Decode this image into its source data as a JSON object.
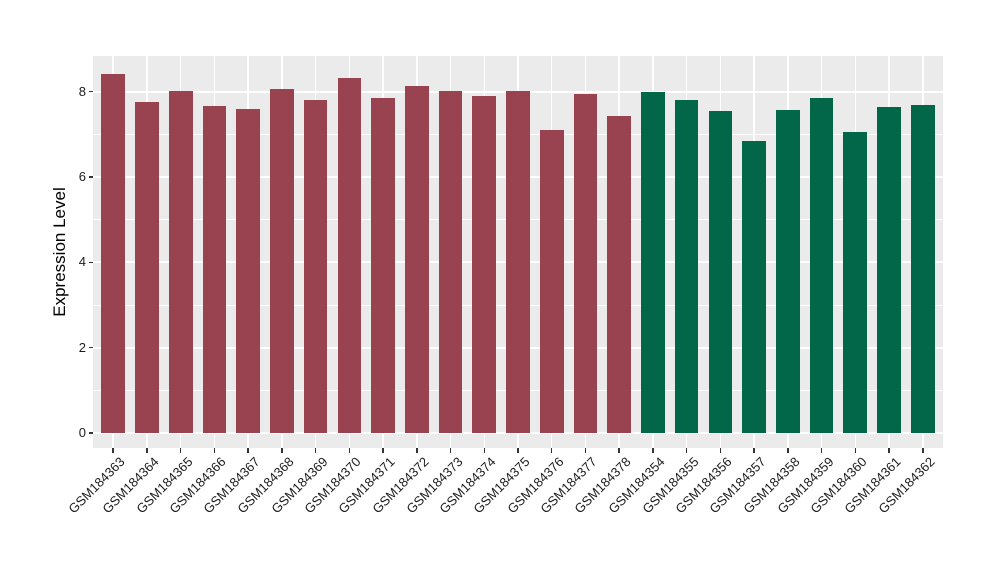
{
  "chart_data": {
    "type": "bar",
    "title": "",
    "xlabel": "",
    "ylabel": "Expression Level",
    "ylim": [
      0,
      8.84
    ],
    "yticks": [
      0,
      2,
      4,
      6,
      8
    ],
    "minor_yticks": [
      1,
      3,
      5,
      7
    ],
    "grid": "on",
    "legend": "none",
    "panel_bg": "#ebebeb",
    "grid_color": "#ffffff",
    "tick_color": "#333333",
    "group_colors": {
      "groupA": "#9a4350",
      "groupB": "#016748"
    },
    "categories": [
      "GSM184363",
      "GSM184364",
      "GSM184365",
      "GSM184366",
      "GSM184367",
      "GSM184368",
      "GSM184369",
      "GSM184370",
      "GSM184371",
      "GSM184372",
      "GSM184373",
      "GSM184374",
      "GSM184375",
      "GSM184376",
      "GSM184377",
      "GSM184378",
      "GSM184354",
      "GSM184355",
      "GSM184356",
      "GSM184357",
      "GSM184358",
      "GSM184359",
      "GSM184360",
      "GSM184361",
      "GSM184362"
    ],
    "values": [
      8.41,
      7.77,
      8.02,
      7.67,
      7.6,
      8.06,
      7.81,
      8.31,
      7.86,
      8.13,
      8.02,
      7.91,
      8.02,
      7.1,
      7.95,
      7.44,
      7.99,
      7.81,
      7.55,
      6.84,
      7.57,
      7.86,
      7.05,
      7.65,
      7.7
    ],
    "groups": [
      "groupA",
      "groupA",
      "groupA",
      "groupA",
      "groupA",
      "groupA",
      "groupA",
      "groupA",
      "groupA",
      "groupA",
      "groupA",
      "groupA",
      "groupA",
      "groupA",
      "groupA",
      "groupA",
      "groupB",
      "groupB",
      "groupB",
      "groupB",
      "groupB",
      "groupB",
      "groupB",
      "groupB",
      "groupB"
    ]
  }
}
